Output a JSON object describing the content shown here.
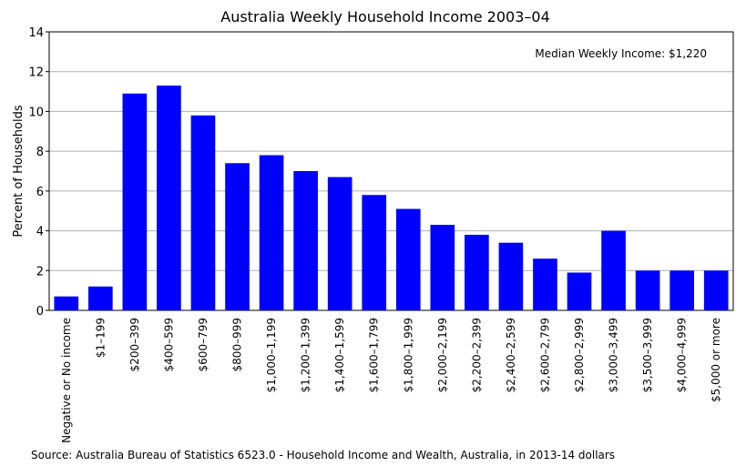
{
  "chart_data": {
    "type": "bar",
    "title": "Australia Weekly Household Income 2003–04",
    "y_label": "Percent of Households",
    "annotation": "Median Weekly Income: $1,220",
    "source": "Source: Australia Bureau of Statistics 6523.0 - Household Income and Wealth, Australia, in 2013-14 dollars",
    "categories": [
      "Negative or No income",
      "$1–199",
      "$200–399",
      "$400–599",
      "$600–799",
      "$800–999",
      "$1,000–1,199",
      "$1,200–1,399",
      "$1,400–1,599",
      "$1,600–1,799",
      "$1,800–1,999",
      "$2,000–2,199",
      "$2,200–2,399",
      "$2,400–2,599",
      "$2,600–2,799",
      "$2,800–2,999",
      "$3,000–3,499",
      "$3,500–3,999",
      "$4,000–4,999",
      "$5,000 or more"
    ],
    "values": [
      0.7,
      1.2,
      10.9,
      11.3,
      9.8,
      7.4,
      7.8,
      7.0,
      6.7,
      5.8,
      5.1,
      4.3,
      3.8,
      3.4,
      2.6,
      1.9,
      4.0,
      2.0,
      2.0,
      2.0
    ],
    "color": "#0000ff",
    "ylim": [
      0,
      14
    ],
    "yticks": [
      0,
      2,
      4,
      6,
      8,
      10,
      12,
      14
    ],
    "grid": true
  }
}
